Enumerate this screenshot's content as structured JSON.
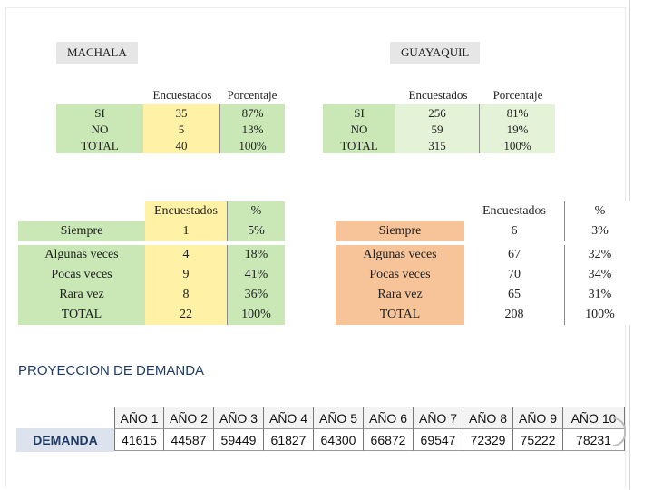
{
  "city_labels": {
    "left": "MACHALA",
    "right": "GUAYAQUIL"
  },
  "machala_table1": {
    "headers": [
      "Encuestados",
      "Porcentaje"
    ],
    "rows": [
      {
        "label": "SI",
        "encuestados": "35",
        "porcentaje": "87%"
      },
      {
        "label": "NO",
        "encuestados": "5",
        "porcentaje": "13%"
      },
      {
        "label": "TOTAL",
        "encuestados": "40",
        "porcentaje": "100%"
      }
    ]
  },
  "guayaquil_table1": {
    "headers": [
      "Encuestados",
      "Porcentaje"
    ],
    "rows": [
      {
        "label": "SI",
        "encuestados": "256",
        "porcentaje": "81%"
      },
      {
        "label": "NO",
        "encuestados": "59",
        "porcentaje": "19%"
      },
      {
        "label": "TOTAL",
        "encuestados": "315",
        "porcentaje": "100%"
      }
    ]
  },
  "machala_table2": {
    "headers": [
      "Encuestados",
      "%"
    ],
    "rows": [
      {
        "label": "Siempre",
        "encuestados": "1",
        "pct": "5%"
      },
      {
        "label": "Algunas veces",
        "encuestados": "4",
        "pct": "18%"
      },
      {
        "label": "Pocas veces",
        "encuestados": "9",
        "pct": "41%"
      },
      {
        "label": "Rara vez",
        "encuestados": "8",
        "pct": "36%"
      },
      {
        "label": "TOTAL",
        "encuestados": "22",
        "pct": "100%"
      }
    ]
  },
  "guayaquil_table2": {
    "headers": [
      "Encuestados",
      "%"
    ],
    "rows": [
      {
        "label": "Siempre",
        "encuestados": "6",
        "pct": "3%"
      },
      {
        "label": "Algunas veces",
        "encuestados": "67",
        "pct": "32%"
      },
      {
        "label": "Pocas veces",
        "encuestados": "70",
        "pct": "34%"
      },
      {
        "label": "Rara vez",
        "encuestados": "65",
        "pct": "31%"
      },
      {
        "label": "TOTAL",
        "encuestados": "208",
        "pct": "100%"
      }
    ]
  },
  "proyeccion": {
    "title": "PROYECCION DE DEMANDA",
    "row_label": "DEMANDA",
    "years": [
      "AÑO 1",
      "AÑO 2",
      "AÑO 3",
      "AÑO 4",
      "AÑO 5",
      "AÑO 6",
      "AÑO 7",
      "AÑO 8",
      "AÑO 9",
      "AÑO 10"
    ],
    "values": [
      "41615",
      "44587",
      "59449",
      "61827",
      "64300",
      "66872",
      "69547",
      "72329",
      "75222",
      "78231"
    ]
  },
  "colors": {
    "yellow": "#fff2a6",
    "green": "#c9e8b6",
    "orange": "#f7c49a",
    "title_blue": "#1f3b66"
  }
}
